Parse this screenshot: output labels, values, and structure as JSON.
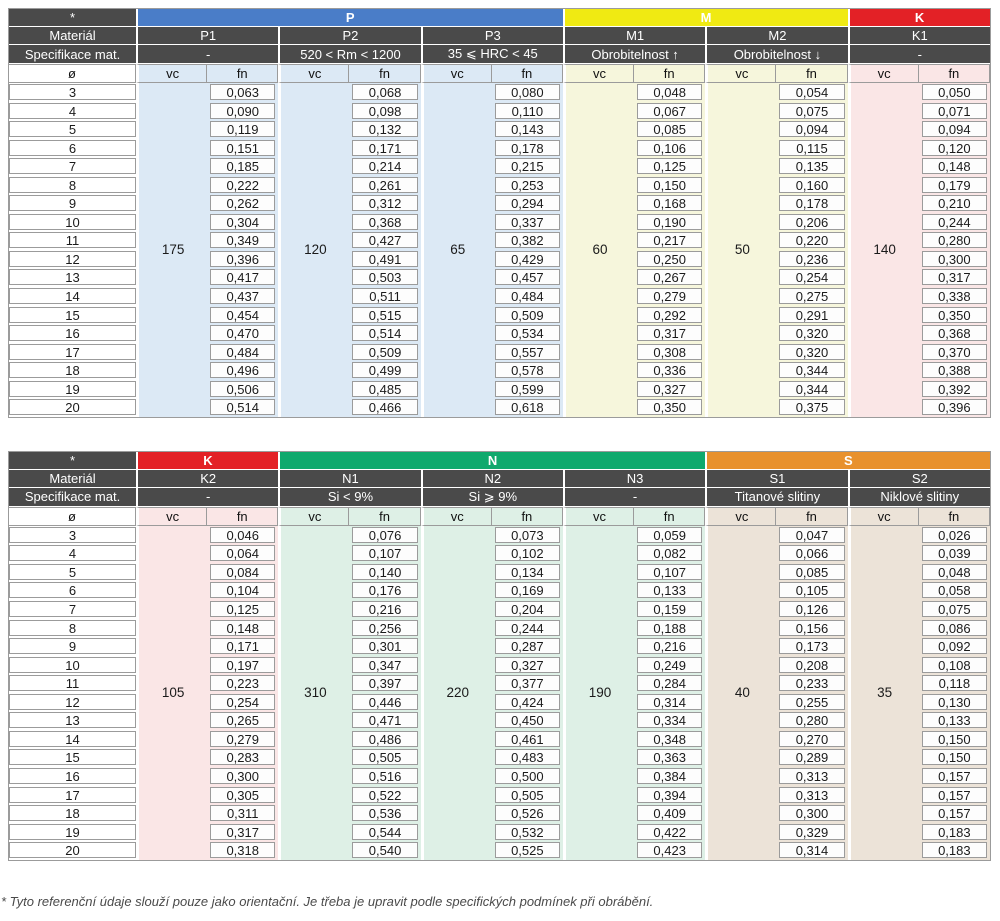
{
  "labels": {
    "asterisk": "*",
    "material": "Materiál",
    "spec": "Specifikace mat.",
    "diameter": "ø",
    "vc": "vc",
    "fn": "fn"
  },
  "colors": {
    "header_dark": "#4a4a4a",
    "border_gray": "#9b9b9b",
    "group_P": "#4a7dc8",
    "group_M": "#f0ea12",
    "group_K": "#e32126",
    "group_N": "#0fa96d",
    "group_S": "#e8912d",
    "tint_P": "#dce9f5",
    "tint_M": "#f6f6dc",
    "tint_K": "#fae6e6",
    "tint_N": "#def0e6",
    "tint_S": "#ece3d8"
  },
  "diameters": [
    "3",
    "4",
    "5",
    "6",
    "7",
    "8",
    "9",
    "10",
    "11",
    "12",
    "13",
    "14",
    "15",
    "16",
    "17",
    "18",
    "19",
    "20"
  ],
  "tables": [
    {
      "groups": [
        {
          "name": "P",
          "color": "#4a7dc8",
          "tint": "#dce9f5",
          "columns": [
            {
              "name": "P1",
              "spec": "-",
              "vc": "175",
              "fn": [
                "0,063",
                "0,090",
                "0,119",
                "0,151",
                "0,185",
                "0,222",
                "0,262",
                "0,304",
                "0,349",
                "0,396",
                "0,417",
                "0,437",
                "0,454",
                "0,470",
                "0,484",
                "0,496",
                "0,506",
                "0,514"
              ]
            },
            {
              "name": "P2",
              "spec": "520 < Rm < 1200",
              "vc": "120",
              "fn": [
                "0,068",
                "0,098",
                "0,132",
                "0,171",
                "0,214",
                "0,261",
                "0,312",
                "0,368",
                "0,427",
                "0,491",
                "0,503",
                "0,511",
                "0,515",
                "0,514",
                "0,509",
                "0,499",
                "0,485",
                "0,466"
              ]
            },
            {
              "name": "P3",
              "spec": "35 ⩽ HRC < 45",
              "vc": "65",
              "fn": [
                "0,080",
                "0,110",
                "0,143",
                "0,178",
                "0,215",
                "0,253",
                "0,294",
                "0,337",
                "0,382",
                "0,429",
                "0,457",
                "0,484",
                "0,509",
                "0,534",
                "0,557",
                "0,578",
                "0,599",
                "0,618"
              ]
            }
          ]
        },
        {
          "name": "M",
          "color": "#f0ea12",
          "tint": "#f6f6dc",
          "columns": [
            {
              "name": "M1",
              "spec": "Obrobitelnost ↑",
              "vc": "60",
              "fn": [
                "0,048",
                "0,067",
                "0,085",
                "0,106",
                "0,125",
                "0,150",
                "0,168",
                "0,190",
                "0,217",
                "0,250",
                "0,267",
                "0,279",
                "0,292",
                "0,317",
                "0,308",
                "0,336",
                "0,327",
                "0,350"
              ]
            },
            {
              "name": "M2",
              "spec": "Obrobitelnost ↓",
              "vc": "50",
              "fn": [
                "0,054",
                "0,075",
                "0,094",
                "0,115",
                "0,135",
                "0,160",
                "0,178",
                "0,206",
                "0,220",
                "0,236",
                "0,254",
                "0,275",
                "0,291",
                "0,320",
                "0,320",
                "0,344",
                "0,344",
                "0,375"
              ]
            }
          ]
        },
        {
          "name": "K",
          "color": "#e32126",
          "tint": "#fae6e6",
          "columns": [
            {
              "name": "K1",
              "spec": "-",
              "vc": "140",
              "fn": [
                "0,050",
                "0,071",
                "0,094",
                "0,120",
                "0,148",
                "0,179",
                "0,210",
                "0,244",
                "0,280",
                "0,300",
                "0,317",
                "0,338",
                "0,350",
                "0,368",
                "0,370",
                "0,388",
                "0,392",
                "0,396"
              ]
            }
          ]
        }
      ]
    },
    {
      "groups": [
        {
          "name": "K",
          "color": "#e32126",
          "tint": "#fae6e6",
          "columns": [
            {
              "name": "K2",
              "spec": "-",
              "vc": "105",
              "fn": [
                "0,046",
                "0,064",
                "0,084",
                "0,104",
                "0,125",
                "0,148",
                "0,171",
                "0,197",
                "0,223",
                "0,254",
                "0,265",
                "0,279",
                "0,283",
                "0,300",
                "0,305",
                "0,311",
                "0,317",
                "0,318"
              ]
            }
          ]
        },
        {
          "name": "N",
          "color": "#0fa96d",
          "tint": "#def0e6",
          "columns": [
            {
              "name": "N1",
              "spec": "Si < 9%",
              "vc": "310",
              "fn": [
                "0,076",
                "0,107",
                "0,140",
                "0,176",
                "0,216",
                "0,256",
                "0,301",
                "0,347",
                "0,397",
                "0,446",
                "0,471",
                "0,486",
                "0,505",
                "0,516",
                "0,522",
                "0,536",
                "0,544",
                "0,540"
              ]
            },
            {
              "name": "N2",
              "spec": "Si ⩾ 9%",
              "vc": "220",
              "fn": [
                "0,073",
                "0,102",
                "0,134",
                "0,169",
                "0,204",
                "0,244",
                "0,287",
                "0,327",
                "0,377",
                "0,424",
                "0,450",
                "0,461",
                "0,483",
                "0,500",
                "0,505",
                "0,526",
                "0,532",
                "0,525"
              ]
            },
            {
              "name": "N3",
              "spec": "-",
              "vc": "190",
              "fn": [
                "0,059",
                "0,082",
                "0,107",
                "0,133",
                "0,159",
                "0,188",
                "0,216",
                "0,249",
                "0,284",
                "0,314",
                "0,334",
                "0,348",
                "0,363",
                "0,384",
                "0,394",
                "0,409",
                "0,422",
                "0,423"
              ]
            }
          ]
        },
        {
          "name": "S",
          "color": "#e8912d",
          "tint": "#ece3d8",
          "columns": [
            {
              "name": "S1",
              "spec": "Titanové slitiny",
              "vc": "40",
              "fn": [
                "0,047",
                "0,066",
                "0,085",
                "0,105",
                "0,126",
                "0,156",
                "0,173",
                "0,208",
                "0,233",
                "0,255",
                "0,280",
                "0,270",
                "0,289",
                "0,313",
                "0,313",
                "0,300",
                "0,329",
                "0,314"
              ]
            },
            {
              "name": "S2",
              "spec": "Niklové slitiny",
              "vc": "35",
              "fn": [
                "0,026",
                "0,039",
                "0,048",
                "0,058",
                "0,075",
                "0,086",
                "0,092",
                "0,108",
                "0,118",
                "0,130",
                "0,133",
                "0,150",
                "0,150",
                "0,157",
                "0,157",
                "0,157",
                "0,183",
                "0,183"
              ]
            }
          ]
        }
      ]
    }
  ],
  "footnote": "* Tyto referenční údaje slouží pouze jako orientační. Je třeba je upravit podle specifických podmínek při obrábění."
}
